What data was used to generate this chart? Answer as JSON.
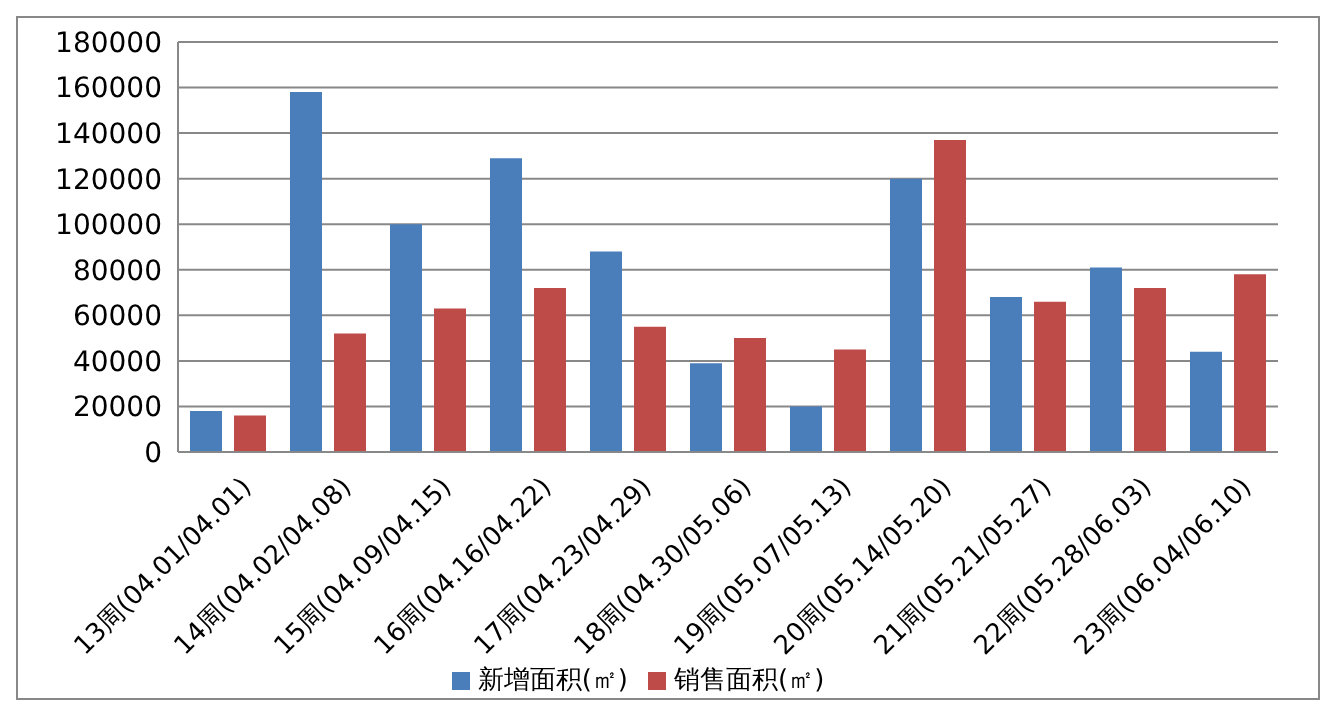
{
  "chart_data": {
    "type": "bar",
    "categories": [
      "13周(04.01/04.01)",
      "14周(04.02/04.08)",
      "15周(04.09/04.15)",
      "16周(04.16/04.22)",
      "17周(04.23/04.29)",
      "18周(04.30/05.06)",
      "19周(05.07/05.13)",
      "20周(05.14/05.20)",
      "21周(05.21/05.27)",
      "22周(05.28/06.03)",
      "23周(06.04/06.10)"
    ],
    "series": [
      {
        "name": "新增面积(㎡)",
        "color": "#4a7ebb",
        "values": [
          18000,
          158000,
          100000,
          129000,
          88000,
          39000,
          20000,
          120000,
          68000,
          81000,
          44000
        ]
      },
      {
        "name": "销售面积(㎡)",
        "color": "#be4b48",
        "values": [
          16000,
          52000,
          63000,
          72000,
          55000,
          50000,
          45000,
          137000,
          66000,
          72000,
          78000
        ]
      }
    ],
    "ylim": [
      0,
      180000
    ],
    "yticks": [
      0,
      20000,
      40000,
      60000,
      80000,
      100000,
      120000,
      140000,
      160000,
      180000
    ],
    "grid": "y",
    "legend": "bottom"
  }
}
